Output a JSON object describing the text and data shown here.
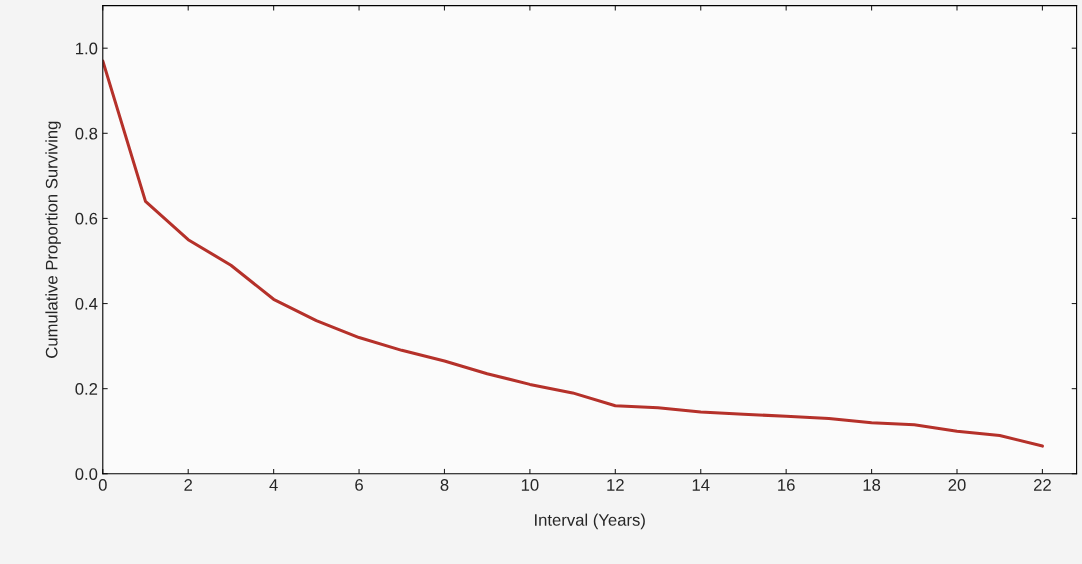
{
  "chart_data": {
    "type": "line",
    "xlabel": "Interval (Years)",
    "ylabel": "Cumulative Proportion Surviving",
    "x": [
      0,
      1,
      2,
      3,
      4,
      5,
      6,
      7,
      8,
      9,
      10,
      11,
      12,
      13,
      14,
      15,
      16,
      17,
      18,
      19,
      20,
      21,
      22
    ],
    "series": [
      {
        "color": "#b5312a",
        "values": [
          0.97,
          0.64,
          0.55,
          0.49,
          0.41,
          0.36,
          0.32,
          0.29,
          0.265,
          0.235,
          0.21,
          0.19,
          0.16,
          0.155,
          0.145,
          0.14,
          0.135,
          0.13,
          0.12,
          0.115,
          0.1,
          0.09,
          0.065
        ]
      }
    ],
    "xlim": [
      0,
      22.8
    ],
    "ylim": [
      0,
      1.1
    ],
    "xticks": [
      0,
      2,
      4,
      6,
      8,
      10,
      12,
      14,
      16,
      18,
      20,
      22
    ],
    "yticks": [
      {
        "value": 0,
        "label": "0.0"
      },
      0.2,
      0.4,
      0.6,
      0.8,
      {
        "value": 1,
        "label": "1.0"
      }
    ],
    "grid": false,
    "marker": "none",
    "line_style": "solid"
  }
}
